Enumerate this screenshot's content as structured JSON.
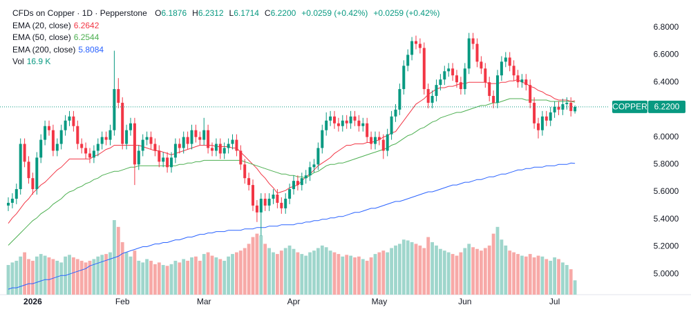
{
  "header": {
    "title": "CFDs on Copper · 1D · Pepperstone",
    "ohlc": [
      {
        "key": "O",
        "value": "6.1876"
      },
      {
        "key": "H",
        "value": "6.2312"
      },
      {
        "key": "L",
        "value": "6.1714"
      },
      {
        "key": "C",
        "value": "6.2200"
      }
    ],
    "change": [
      "+0.0259 (+0.42%)",
      "+0.0259 (+0.42%)"
    ]
  },
  "chart_data": {
    "type": "candlestick",
    "up_color": "#089981",
    "down_color": "#f23645",
    "categories": [
      null,
      null,
      null,
      null,
      null,
      null,
      "2026",
      null,
      null,
      null,
      null,
      null,
      null,
      null,
      null,
      null,
      null,
      null,
      null,
      null,
      null,
      null,
      null,
      null,
      null,
      null,
      null,
      null,
      "Feb",
      null,
      null,
      null,
      null,
      null,
      null,
      null,
      null,
      null,
      null,
      null,
      null,
      null,
      null,
      null,
      null,
      null,
      null,
      null,
      "Mar",
      null,
      null,
      null,
      null,
      null,
      null,
      null,
      null,
      null,
      null,
      null,
      null,
      null,
      null,
      null,
      null,
      null,
      null,
      null,
      null,
      null,
      "Apr",
      null,
      null,
      null,
      null,
      null,
      null,
      null,
      null,
      null,
      null,
      null,
      null,
      null,
      null,
      null,
      null,
      null,
      null,
      null,
      null,
      "May",
      null,
      null,
      null,
      null,
      null,
      null,
      null,
      null,
      null,
      null,
      null,
      null,
      null,
      null,
      null,
      null,
      null,
      null,
      null,
      null,
      "Jun",
      null,
      null,
      null,
      null,
      null,
      null,
      null,
      null,
      null,
      null,
      null,
      null,
      null,
      null,
      null,
      null,
      null,
      null,
      null,
      null,
      null,
      "Jul",
      null,
      null,
      null,
      null,
      null
    ],
    "open": [
      5.5,
      5.52,
      5.55,
      5.62,
      5.95,
      5.82,
      5.7,
      5.62,
      5.85,
      5.98,
      6.08,
      6.05,
      5.9,
      5.95,
      6.05,
      6.12,
      6.15,
      6.08,
      5.95,
      5.92,
      5.88,
      5.85,
      5.9,
      5.95,
      6.0,
      5.98,
      6.05,
      6.35,
      6.25,
      5.95,
      6.05,
      6.1,
      5.8,
      5.9,
      5.98,
      6.0,
      5.95,
      5.9,
      5.82,
      5.85,
      5.78,
      5.85,
      5.95,
      5.92,
      6.0,
      5.95,
      6.05,
      6.0,
      5.98,
      6.05,
      5.92,
      5.9,
      5.95,
      5.88,
      5.92,
      5.95,
      5.98,
      5.9,
      5.8,
      5.7,
      5.65,
      5.5,
      5.45,
      5.55,
      5.5,
      5.55,
      5.58,
      5.52,
      5.48,
      5.55,
      5.62,
      5.68,
      5.65,
      5.7,
      5.72,
      5.78,
      5.8,
      5.92,
      6.05,
      6.12,
      6.15,
      6.1,
      6.08,
      6.12,
      6.1,
      6.15,
      6.12,
      6.08,
      6.1,
      6.0,
      5.95,
      6.0,
      5.98,
      5.9,
      6.02,
      6.15,
      6.2,
      6.35,
      6.52,
      6.6,
      6.7,
      6.68,
      6.65,
      6.35,
      6.25,
      6.3,
      6.38,
      6.42,
      6.48,
      6.5,
      6.45,
      6.4,
      6.35,
      6.5,
      6.72,
      6.68,
      6.55,
      6.5,
      6.4,
      6.3,
      6.25,
      6.45,
      6.55,
      6.58,
      6.52,
      6.45,
      6.4,
      6.42,
      6.38,
      6.25,
      6.1,
      6.05,
      6.15,
      6.12,
      6.18,
      6.22,
      6.2,
      6.24,
      6.25,
      6.1876
    ],
    "high": [
      5.56,
      5.59,
      5.66,
      5.99,
      5.99,
      5.86,
      5.74,
      5.89,
      6.02,
      6.12,
      6.12,
      6.09,
      5.99,
      6.09,
      6.16,
      6.19,
      6.19,
      6.12,
      5.99,
      5.96,
      5.92,
      5.94,
      5.99,
      6.04,
      6.04,
      6.09,
      6.63,
      6.43,
      6.29,
      6.09,
      6.14,
      6.14,
      5.94,
      6.02,
      6.04,
      6.04,
      5.99,
      5.94,
      5.89,
      5.89,
      5.89,
      5.99,
      5.99,
      6.04,
      6.04,
      6.09,
      6.09,
      6.04,
      6.14,
      6.09,
      5.96,
      5.99,
      5.99,
      5.96,
      5.99,
      6.02,
      6.02,
      5.94,
      5.84,
      5.74,
      5.69,
      5.54,
      5.59,
      5.59,
      5.59,
      5.62,
      5.62,
      5.56,
      5.59,
      5.66,
      5.72,
      5.72,
      5.74,
      5.76,
      5.82,
      5.84,
      5.96,
      6.09,
      6.18,
      6.19,
      6.19,
      6.14,
      6.16,
      6.16,
      6.19,
      6.19,
      6.16,
      6.14,
      6.14,
      6.04,
      6.04,
      6.04,
      6.02,
      6.06,
      6.19,
      6.24,
      6.39,
      6.56,
      6.64,
      6.73,
      6.74,
      6.72,
      6.69,
      6.39,
      6.34,
      6.42,
      6.46,
      6.52,
      6.54,
      6.54,
      6.49,
      6.44,
      6.54,
      6.76,
      6.76,
      6.72,
      6.59,
      6.54,
      6.44,
      6.34,
      6.49,
      6.59,
      6.62,
      6.62,
      6.56,
      6.49,
      6.46,
      6.46,
      6.42,
      6.29,
      6.14,
      6.19,
      6.19,
      6.22,
      6.26,
      6.26,
      6.28,
      6.29,
      6.29,
      6.2312
    ],
    "low": [
      5.46,
      5.48,
      5.51,
      5.58,
      5.78,
      5.66,
      5.58,
      5.58,
      5.81,
      5.94,
      6.01,
      5.86,
      5.86,
      5.91,
      6.01,
      6.08,
      6.04,
      5.91,
      5.88,
      5.84,
      5.81,
      5.81,
      5.86,
      5.91,
      5.94,
      5.94,
      6.01,
      6.21,
      5.91,
      5.91,
      6.01,
      5.65,
      5.76,
      5.86,
      5.94,
      5.91,
      5.86,
      5.78,
      5.78,
      5.74,
      5.74,
      5.81,
      5.88,
      5.88,
      5.91,
      5.91,
      5.96,
      5.94,
      5.94,
      5.88,
      5.86,
      5.86,
      5.84,
      5.84,
      5.88,
      5.91,
      5.86,
      5.76,
      5.66,
      5.61,
      5.46,
      5.38,
      5.28,
      5.46,
      5.46,
      5.51,
      5.48,
      5.44,
      5.44,
      5.51,
      5.58,
      5.61,
      5.61,
      5.66,
      5.68,
      5.74,
      5.76,
      5.88,
      6.01,
      6.08,
      6.06,
      6.04,
      6.04,
      6.06,
      6.06,
      6.08,
      6.04,
      6.04,
      5.96,
      5.91,
      5.91,
      5.94,
      5.84,
      5.86,
      5.98,
      6.11,
      6.16,
      6.31,
      6.48,
      6.56,
      6.64,
      6.61,
      6.31,
      6.21,
      6.21,
      6.26,
      6.34,
      6.38,
      6.44,
      6.41,
      6.36,
      6.31,
      6.31,
      6.46,
      6.64,
      6.51,
      6.46,
      6.36,
      6.26,
      6.21,
      6.21,
      6.41,
      6.51,
      6.48,
      6.41,
      6.36,
      6.36,
      6.34,
      6.21,
      6.06,
      5.99,
      6.01,
      6.08,
      6.08,
      6.14,
      6.16,
      6.16,
      6.2,
      6.15,
      6.1714
    ],
    "close": [
      5.52,
      5.55,
      5.62,
      5.95,
      5.82,
      5.7,
      5.62,
      5.85,
      5.98,
      6.08,
      6.05,
      5.9,
      5.95,
      6.05,
      6.12,
      6.15,
      6.08,
      5.95,
      5.92,
      5.88,
      5.85,
      5.9,
      5.95,
      6.0,
      5.98,
      6.05,
      6.35,
      6.25,
      5.95,
      6.05,
      6.1,
      5.8,
      5.9,
      5.98,
      6.0,
      5.95,
      5.9,
      5.82,
      5.85,
      5.78,
      5.85,
      5.95,
      5.92,
      6.0,
      5.95,
      6.05,
      6.0,
      5.98,
      6.05,
      5.92,
      5.9,
      5.95,
      5.88,
      5.92,
      5.95,
      5.98,
      5.9,
      5.8,
      5.7,
      5.65,
      5.5,
      5.45,
      5.55,
      5.5,
      5.55,
      5.58,
      5.52,
      5.48,
      5.55,
      5.62,
      5.68,
      5.65,
      5.7,
      5.72,
      5.78,
      5.8,
      5.92,
      6.05,
      6.12,
      6.15,
      6.1,
      6.08,
      6.12,
      6.1,
      6.15,
      6.12,
      6.08,
      6.1,
      6.0,
      5.95,
      6.0,
      5.98,
      5.9,
      6.02,
      6.15,
      6.2,
      6.35,
      6.52,
      6.6,
      6.7,
      6.68,
      6.65,
      6.35,
      6.25,
      6.3,
      6.38,
      6.42,
      6.48,
      6.5,
      6.45,
      6.4,
      6.35,
      6.5,
      6.72,
      6.68,
      6.55,
      6.5,
      6.4,
      6.3,
      6.25,
      6.45,
      6.55,
      6.58,
      6.52,
      6.45,
      6.4,
      6.42,
      6.38,
      6.25,
      6.1,
      6.05,
      6.15,
      6.12,
      6.18,
      6.22,
      6.2,
      6.24,
      6.25,
      6.19,
      6.22
    ],
    "series": [
      {
        "name": "EMA (20, close)",
        "color": "#f23645",
        "values": [
          5.37,
          5.41,
          5.44,
          5.48,
          5.52,
          5.55,
          5.59,
          5.62,
          5.65,
          5.67,
          5.7,
          5.73,
          5.76,
          5.78,
          5.81,
          5.84,
          5.84,
          5.84,
          5.84,
          5.84,
          5.84,
          5.86,
          5.87,
          5.89,
          5.91,
          5.92,
          5.94,
          5.94,
          5.94,
          5.94,
          5.94,
          5.94,
          5.94,
          5.93,
          5.92,
          5.91,
          5.9,
          5.9,
          5.89,
          5.88,
          5.87,
          5.88,
          5.89,
          5.9,
          5.91,
          5.92,
          5.93,
          5.94,
          5.94,
          5.94,
          5.94,
          5.93,
          5.93,
          5.93,
          5.93,
          5.92,
          5.92,
          5.89,
          5.86,
          5.83,
          5.8,
          5.77,
          5.73,
          5.7,
          5.66,
          5.63,
          5.59,
          5.6,
          5.61,
          5.63,
          5.64,
          5.65,
          5.68,
          5.71,
          5.73,
          5.76,
          5.79,
          5.81,
          5.83,
          5.85,
          5.88,
          5.9,
          5.92,
          5.94,
          5.94,
          5.95,
          5.95,
          5.95,
          5.96,
          5.96,
          5.97,
          5.98,
          6.0,
          6.01,
          6.03,
          6.04,
          6.08,
          6.12,
          6.16,
          6.2,
          6.24,
          6.26,
          6.28,
          6.31,
          6.33,
          6.35,
          6.36,
          6.36,
          6.37,
          6.37,
          6.38,
          6.39,
          6.39,
          6.4,
          6.4,
          6.4,
          6.4,
          6.4,
          6.39,
          6.39,
          6.39,
          6.4,
          6.4,
          6.41,
          6.41,
          6.42,
          6.4,
          6.39,
          6.37,
          6.36,
          6.34,
          6.33,
          6.31,
          6.3,
          6.28,
          6.27,
          6.27,
          6.27,
          6.26,
          6.2642
        ]
      },
      {
        "name": "EMA (50, close)",
        "color": "#4caf50",
        "values": [
          5.21,
          5.24,
          5.27,
          5.3,
          5.33,
          5.36,
          5.39,
          5.41,
          5.44,
          5.46,
          5.48,
          5.51,
          5.53,
          5.55,
          5.58,
          5.6,
          5.61,
          5.63,
          5.64,
          5.66,
          5.67,
          5.69,
          5.7,
          5.72,
          5.73,
          5.74,
          5.75,
          5.75,
          5.76,
          5.77,
          5.78,
          5.78,
          5.79,
          5.79,
          5.79,
          5.79,
          5.79,
          5.79,
          5.79,
          5.79,
          5.79,
          5.79,
          5.8,
          5.8,
          5.81,
          5.81,
          5.82,
          5.82,
          5.83,
          5.83,
          5.83,
          5.83,
          5.83,
          5.83,
          5.83,
          5.83,
          5.83,
          5.83,
          5.82,
          5.81,
          5.8,
          5.79,
          5.78,
          5.77,
          5.76,
          5.75,
          5.74,
          5.73,
          5.73,
          5.72,
          5.72,
          5.71,
          5.71,
          5.7,
          5.72,
          5.74,
          5.75,
          5.77,
          5.79,
          5.8,
          5.8,
          5.81,
          5.81,
          5.82,
          5.83,
          5.84,
          5.85,
          5.86,
          5.87,
          5.88,
          5.89,
          5.9,
          5.91,
          5.92,
          5.94,
          5.95,
          5.97,
          5.99,
          6.01,
          6.02,
          6.04,
          6.06,
          6.07,
          6.09,
          6.11,
          6.12,
          6.14,
          6.15,
          6.16,
          6.17,
          6.18,
          6.18,
          6.19,
          6.2,
          6.21,
          6.22,
          6.23,
          6.23,
          6.24,
          6.25,
          6.25,
          6.26,
          6.27,
          6.28,
          6.28,
          6.28,
          6.28,
          6.27,
          6.27,
          6.27,
          6.27,
          6.27,
          6.27,
          6.26,
          6.26,
          6.26,
          6.26,
          6.26,
          6.26,
          6.2544
        ]
      },
      {
        "name": "EMA (200, close)",
        "color": "#2962ff",
        "values": [
          4.89,
          4.9,
          4.9,
          4.91,
          4.92,
          4.93,
          4.93,
          4.94,
          4.95,
          4.96,
          4.96,
          4.97,
          4.98,
          4.99,
          4.99,
          5.0,
          5.01,
          5.02,
          5.03,
          5.04,
          5.06,
          5.07,
          5.08,
          5.09,
          5.1,
          5.11,
          5.12,
          5.13,
          5.15,
          5.16,
          5.17,
          5.18,
          5.19,
          5.2,
          5.2,
          5.21,
          5.22,
          5.22,
          5.23,
          5.23,
          5.24,
          5.25,
          5.25,
          5.26,
          5.27,
          5.27,
          5.28,
          5.29,
          5.29,
          5.3,
          5.3,
          5.31,
          5.31,
          5.31,
          5.32,
          5.32,
          5.32,
          5.32,
          5.33,
          5.33,
          5.33,
          5.34,
          5.34,
          5.34,
          5.35,
          5.35,
          5.35,
          5.36,
          5.36,
          5.36,
          5.36,
          5.37,
          5.37,
          5.38,
          5.38,
          5.39,
          5.39,
          5.4,
          5.4,
          5.41,
          5.41,
          5.42,
          5.42,
          5.43,
          5.44,
          5.45,
          5.45,
          5.46,
          5.47,
          5.48,
          5.48,
          5.49,
          5.5,
          5.51,
          5.52,
          5.53,
          5.53,
          5.54,
          5.55,
          5.56,
          5.57,
          5.58,
          5.59,
          5.6,
          5.6,
          5.61,
          5.62,
          5.63,
          5.64,
          5.65,
          5.65,
          5.66,
          5.67,
          5.67,
          5.68,
          5.69,
          5.69,
          5.7,
          5.71,
          5.71,
          5.72,
          5.73,
          5.73,
          5.74,
          5.75,
          5.76,
          5.76,
          5.77,
          5.77,
          5.78,
          5.78,
          5.78,
          5.79,
          5.79,
          5.79,
          5.8,
          5.8,
          5.8,
          5.81,
          5.8084
        ]
      }
    ],
    "volume": {
      "name": "Vol",
      "label": "16.9 K",
      "up_color": "#9fd6cc",
      "down_color": "#f7a9a7",
      "values": [
        35,
        38,
        40,
        45,
        50,
        42,
        40,
        45,
        48,
        46,
        44,
        42,
        40,
        38,
        45,
        47,
        44,
        42,
        40,
        38,
        40,
        42,
        45,
        47,
        48,
        50,
        88,
        80,
        62,
        50,
        45,
        52,
        40,
        38,
        42,
        40,
        36,
        38,
        35,
        34,
        36,
        40,
        38,
        42,
        40,
        44,
        45,
        40,
        48,
        50,
        46,
        44,
        42,
        40,
        45,
        48,
        50,
        52,
        55,
        60,
        68,
        72,
        70,
        60,
        55,
        50,
        48,
        52,
        55,
        58,
        54,
        50,
        48,
        46,
        50,
        52,
        55,
        58,
        56,
        52,
        50,
        48,
        45,
        47,
        46,
        44,
        45,
        42,
        40,
        44,
        48,
        50,
        52,
        50,
        55,
        58,
        60,
        65,
        64,
        62,
        60,
        58,
        55,
        68,
        62,
        58,
        54,
        52,
        50,
        48,
        46,
        50,
        55,
        60,
        56,
        54,
        52,
        55,
        58,
        72,
        80,
        65,
        58,
        52,
        50,
        48,
        46,
        45,
        48,
        44,
        46,
        45,
        42,
        40,
        44,
        42,
        38,
        35,
        30,
        16.9
      ]
    },
    "ylim": [
      4.85,
      7.0
    ],
    "yticks": [
      {
        "value": 5.0,
        "label": "5.0000"
      },
      {
        "value": 5.2,
        "label": "5.2000"
      },
      {
        "value": 5.4,
        "label": "5.4000"
      },
      {
        "value": 5.6,
        "label": "5.6000"
      },
      {
        "value": 5.8,
        "label": "5.8000"
      },
      {
        "value": 6.0,
        "label": "6.0000"
      },
      {
        "value": 6.2,
        "label": "6.2000"
      },
      {
        "value": 6.4,
        "label": "6.4000"
      },
      {
        "value": 6.6,
        "label": "6.6000"
      },
      {
        "value": 6.8,
        "label": "6.8000"
      }
    ],
    "grid": false,
    "price_line": {
      "name": "COPPER",
      "value": {
        "value": 6.22,
        "label": "6.2200"
      },
      "color": "#089981"
    }
  }
}
